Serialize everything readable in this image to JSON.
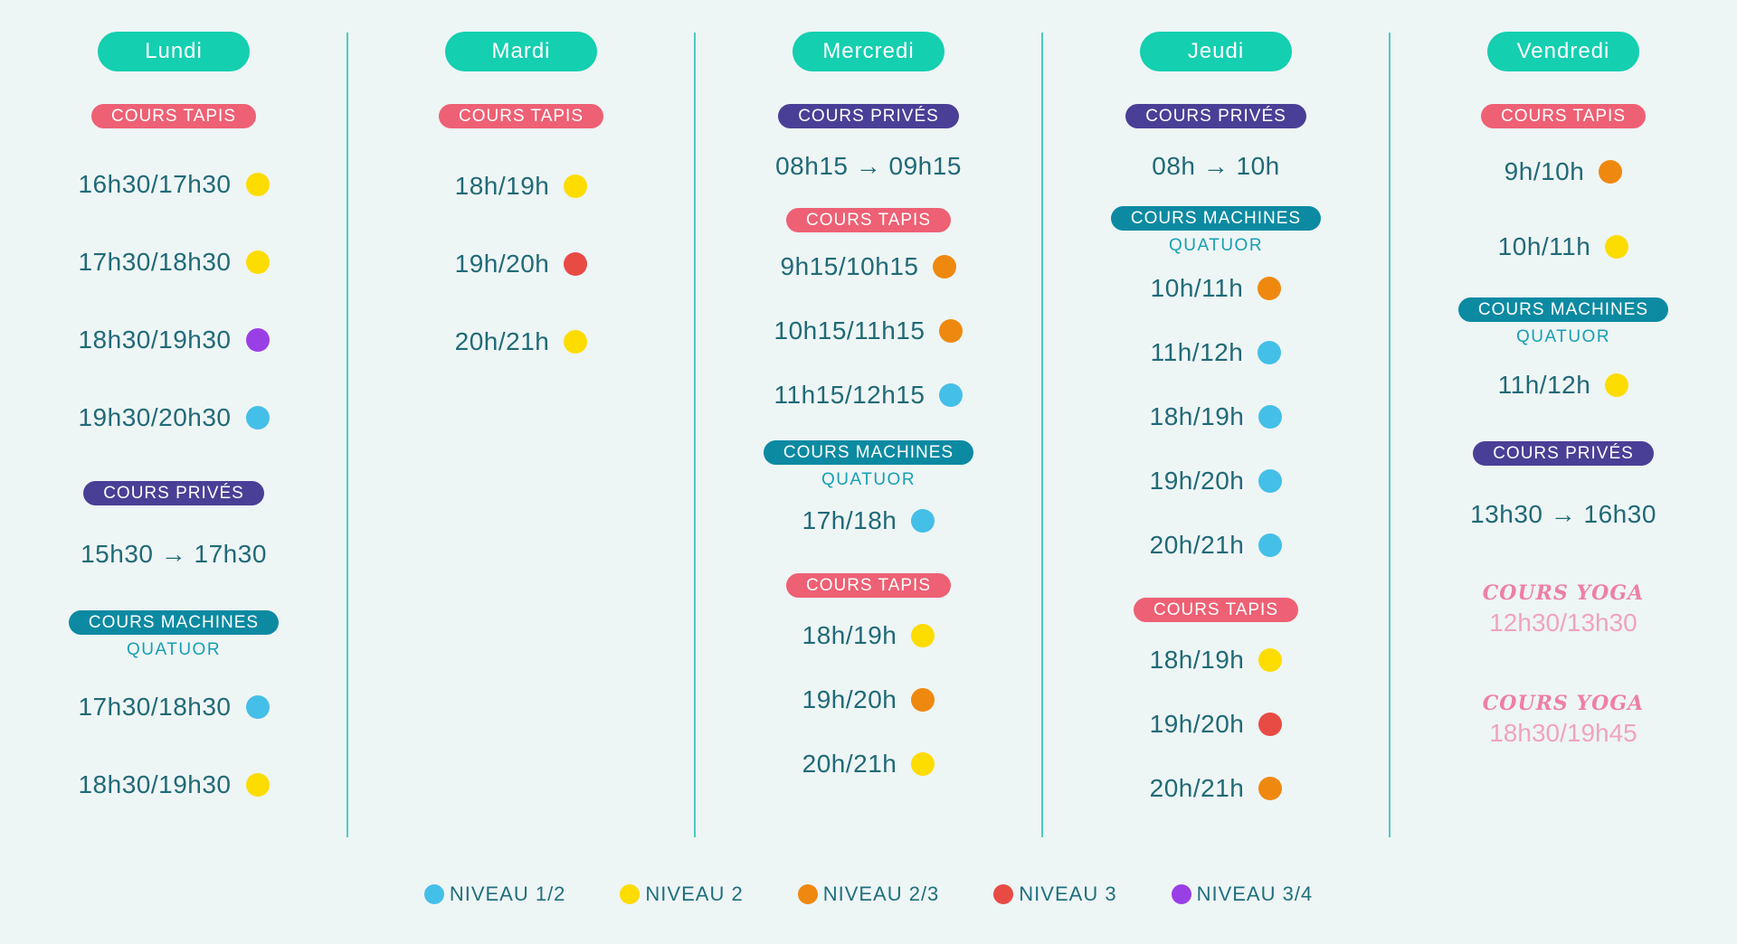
{
  "days": {
    "lundi": "Lundi",
    "mardi": "Mardi",
    "mercredi": "Mercredi",
    "jeudi": "Jeudi",
    "vendredi": "Vendredi"
  },
  "labels": {
    "tapis": "COURS TAPIS",
    "prives": "COURS PRIVÉS",
    "machines": "COURS MACHINES",
    "quatuor": "QUATUOR",
    "yoga": "COURS YOGA"
  },
  "lundi": {
    "tapis": [
      {
        "time": "16h30/17h30",
        "level": "yellow"
      },
      {
        "time": "17h30/18h30",
        "level": "yellow"
      },
      {
        "time": "18h30/19h30",
        "level": "purple"
      },
      {
        "time": "19h30/20h30",
        "level": "blue"
      }
    ],
    "prives": "15h30 → 17h30",
    "machines": [
      {
        "time": "17h30/18h30",
        "level": "blue"
      },
      {
        "time": "18h30/19h30",
        "level": "yellow"
      }
    ]
  },
  "mardi": {
    "tapis": [
      {
        "time": "18h/19h",
        "level": "yellow"
      },
      {
        "time": "19h/20h",
        "level": "red"
      },
      {
        "time": "20h/21h",
        "level": "yellow"
      }
    ]
  },
  "mercredi": {
    "prives": "08h15 → 09h15",
    "tapis1": [
      {
        "time": "9h15/10h15",
        "level": "orange"
      },
      {
        "time": "10h15/11h15",
        "level": "orange"
      },
      {
        "time": "11h15/12h15",
        "level": "blue"
      }
    ],
    "machines": [
      {
        "time": "17h/18h",
        "level": "blue"
      }
    ],
    "tapis2": [
      {
        "time": "18h/19h",
        "level": "yellow"
      },
      {
        "time": "19h/20h",
        "level": "orange"
      },
      {
        "time": "20h/21h",
        "level": "yellow"
      }
    ]
  },
  "jeudi": {
    "prives": "08h → 10h",
    "machines": [
      {
        "time": "10h/11h",
        "level": "orange"
      },
      {
        "time": "11h/12h",
        "level": "blue"
      },
      {
        "time": "18h/19h",
        "level": "blue"
      },
      {
        "time": "19h/20h",
        "level": "blue"
      },
      {
        "time": "20h/21h",
        "level": "blue"
      }
    ],
    "tapis": [
      {
        "time": "18h/19h",
        "level": "yellow"
      },
      {
        "time": "19h/20h",
        "level": "red"
      },
      {
        "time": "20h/21h",
        "level": "orange"
      }
    ]
  },
  "vendredi": {
    "tapis": [
      {
        "time": "9h/10h",
        "level": "orange"
      },
      {
        "time": "10h/11h",
        "level": "yellow"
      }
    ],
    "machines": [
      {
        "time": "11h/12h",
        "level": "yellow"
      }
    ],
    "prives": "13h30 → 16h30",
    "yoga": [
      "12h30/13h30",
      "18h30/19h45"
    ]
  },
  "legend": [
    {
      "label": "NIVEAU 1/2",
      "level": "blue"
    },
    {
      "label": "NIVEAU 2",
      "level": "yellow"
    },
    {
      "label": "NIVEAU 2/3",
      "level": "orange"
    },
    {
      "label": "NIVEAU 3",
      "level": "red"
    },
    {
      "label": "NIVEAU 3/4",
      "level": "purple"
    }
  ],
  "colors": {
    "blue": "#44bfe8",
    "yellow": "#fddc00",
    "orange": "#ef880f",
    "red": "#e84b44",
    "purple": "#9a3fe6",
    "day_pill": "#14cfb0",
    "tapis": "#ee6074",
    "prives": "#4a3f96",
    "machines": "#0c8aa2"
  }
}
